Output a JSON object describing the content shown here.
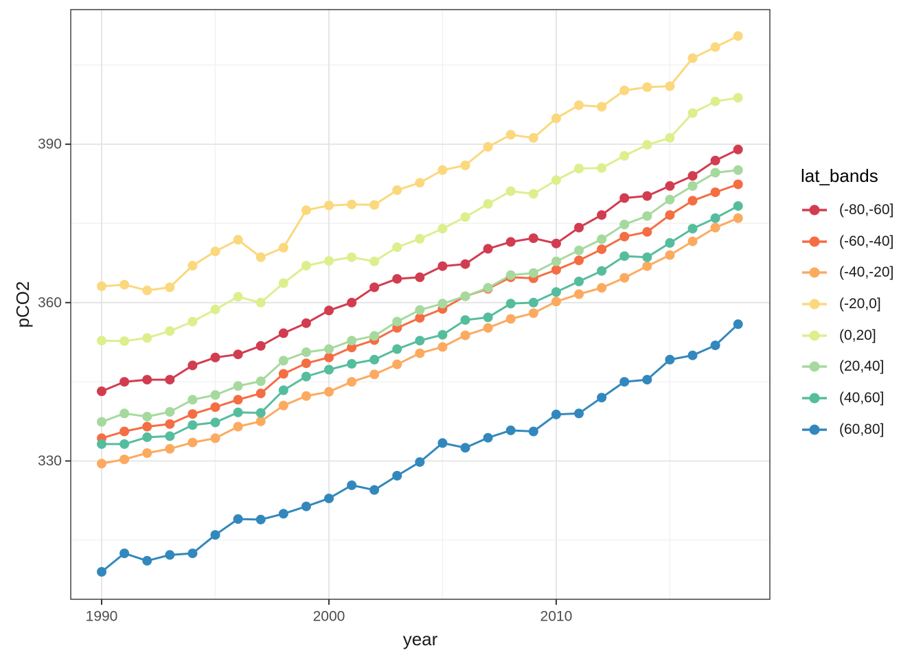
{
  "chart_data": {
    "type": "line",
    "title": "",
    "xlabel": "year",
    "ylabel": "pCO2",
    "legend_title": "lat_bands",
    "legend_position": "right",
    "grid": true,
    "x": [
      1990,
      1991,
      1992,
      1993,
      1994,
      1995,
      1996,
      1997,
      1998,
      1999,
      2000,
      2001,
      2002,
      2003,
      2004,
      2005,
      2006,
      2007,
      2008,
      2009,
      2010,
      2011,
      2012,
      2013,
      2014,
      2015,
      2016,
      2017,
      2018
    ],
    "xlim": [
      1988.64,
      2019.4
    ],
    "ylim": [
      303.8,
      415.5
    ],
    "x_ticks": [
      1990,
      2000,
      2010
    ],
    "x_tick_labels": [
      "1990",
      "2000",
      "2010"
    ],
    "x_minor": [
      1995,
      2005,
      2015
    ],
    "y_ticks": [
      330,
      360,
      390
    ],
    "y_tick_labels": [
      "330",
      "360",
      "390"
    ],
    "y_minor": [
      315,
      345,
      375,
      405
    ],
    "series": [
      {
        "name": "(-80,-60]",
        "color": "#D23C50",
        "values": [
          343.2,
          345.0,
          345.4,
          345.4,
          348.1,
          349.6,
          350.2,
          351.8,
          354.2,
          356.1,
          358.5,
          360.0,
          362.9,
          364.5,
          364.8,
          366.9,
          367.3,
          370.2,
          371.5,
          372.2,
          371.2,
          374.2,
          376.6,
          379.8,
          380.2,
          382.1,
          384.0,
          386.9,
          389.0
        ]
      },
      {
        "name": "(-60,-40]",
        "color": "#F46D43",
        "values": [
          334.3,
          335.6,
          336.5,
          337.0,
          338.9,
          340.2,
          341.6,
          342.8,
          346.5,
          348.5,
          349.6,
          351.5,
          352.9,
          355.2,
          357.1,
          358.8,
          361.2,
          362.6,
          364.8,
          364.6,
          366.2,
          368.0,
          370.1,
          372.5,
          373.4,
          376.6,
          379.3,
          380.9,
          382.4
        ]
      },
      {
        "name": "(-40,-20]",
        "color": "#FBAA60",
        "values": [
          329.5,
          330.3,
          331.5,
          332.3,
          333.5,
          334.3,
          336.5,
          337.5,
          340.5,
          342.3,
          343.1,
          345.0,
          346.4,
          348.3,
          350.4,
          351.6,
          353.8,
          355.2,
          356.9,
          358.0,
          360.2,
          361.6,
          362.8,
          364.7,
          366.9,
          369.0,
          371.6,
          374.2,
          376.0
        ]
      },
      {
        "name": "(-20,0]",
        "color": "#FBD87D",
        "values": [
          363.1,
          363.4,
          362.3,
          362.9,
          367.0,
          369.7,
          371.9,
          368.6,
          370.4,
          377.5,
          378.4,
          378.6,
          378.5,
          381.3,
          382.7,
          385.1,
          386.0,
          389.5,
          391.8,
          391.2,
          394.9,
          397.4,
          397.1,
          400.2,
          400.8,
          401.0,
          406.3,
          408.4,
          410.5
        ]
      },
      {
        "name": "(0,20]",
        "color": "#DCEF8D",
        "values": [
          352.8,
          352.7,
          353.3,
          354.6,
          356.4,
          358.7,
          361.1,
          360.0,
          363.7,
          367.0,
          367.9,
          368.6,
          367.8,
          370.5,
          372.1,
          374.0,
          376.2,
          378.7,
          381.1,
          380.6,
          383.2,
          385.4,
          385.5,
          387.8,
          389.9,
          391.2,
          395.9,
          398.1,
          398.8
        ]
      },
      {
        "name": "(20,40]",
        "color": "#A6D99E",
        "values": [
          337.4,
          339.0,
          338.4,
          339.3,
          341.6,
          342.5,
          344.2,
          345.1,
          349.0,
          350.6,
          351.2,
          352.8,
          353.7,
          356.4,
          358.6,
          359.8,
          361.2,
          362.8,
          365.2,
          365.6,
          367.8,
          369.9,
          372.0,
          374.8,
          376.4,
          379.5,
          382.1,
          384.6,
          385.1
        ]
      },
      {
        "name": "(40,60]",
        "color": "#55BD9D",
        "values": [
          333.2,
          333.2,
          334.5,
          334.7,
          336.8,
          337.3,
          339.2,
          339.1,
          343.4,
          346.0,
          347.3,
          348.4,
          349.2,
          351.2,
          352.8,
          353.9,
          356.7,
          357.2,
          359.8,
          360.0,
          362.0,
          364.0,
          366.0,
          368.8,
          368.6,
          371.3,
          374.0,
          376.0,
          378.3
        ]
      },
      {
        "name": "(60,80]",
        "color": "#3288BD",
        "values": [
          309.0,
          312.5,
          311.1,
          312.2,
          312.5,
          316.0,
          319.0,
          318.9,
          320.0,
          321.4,
          322.9,
          325.4,
          324.5,
          327.2,
          329.8,
          333.4,
          332.5,
          334.4,
          335.8,
          335.6,
          338.8,
          339.0,
          342.0,
          345.0,
          345.4,
          349.2,
          350.0,
          351.9,
          355.9
        ]
      }
    ],
    "colors": {
      "panel_background": "#FFFFFF",
      "panel_border": "#333333",
      "grid_major": "#E3E3E3",
      "grid_minor": "#F0F0F0",
      "tick_mark": "#333333",
      "tick_label": "#4D4D4D",
      "axis_title": "#1A1A1A"
    }
  }
}
